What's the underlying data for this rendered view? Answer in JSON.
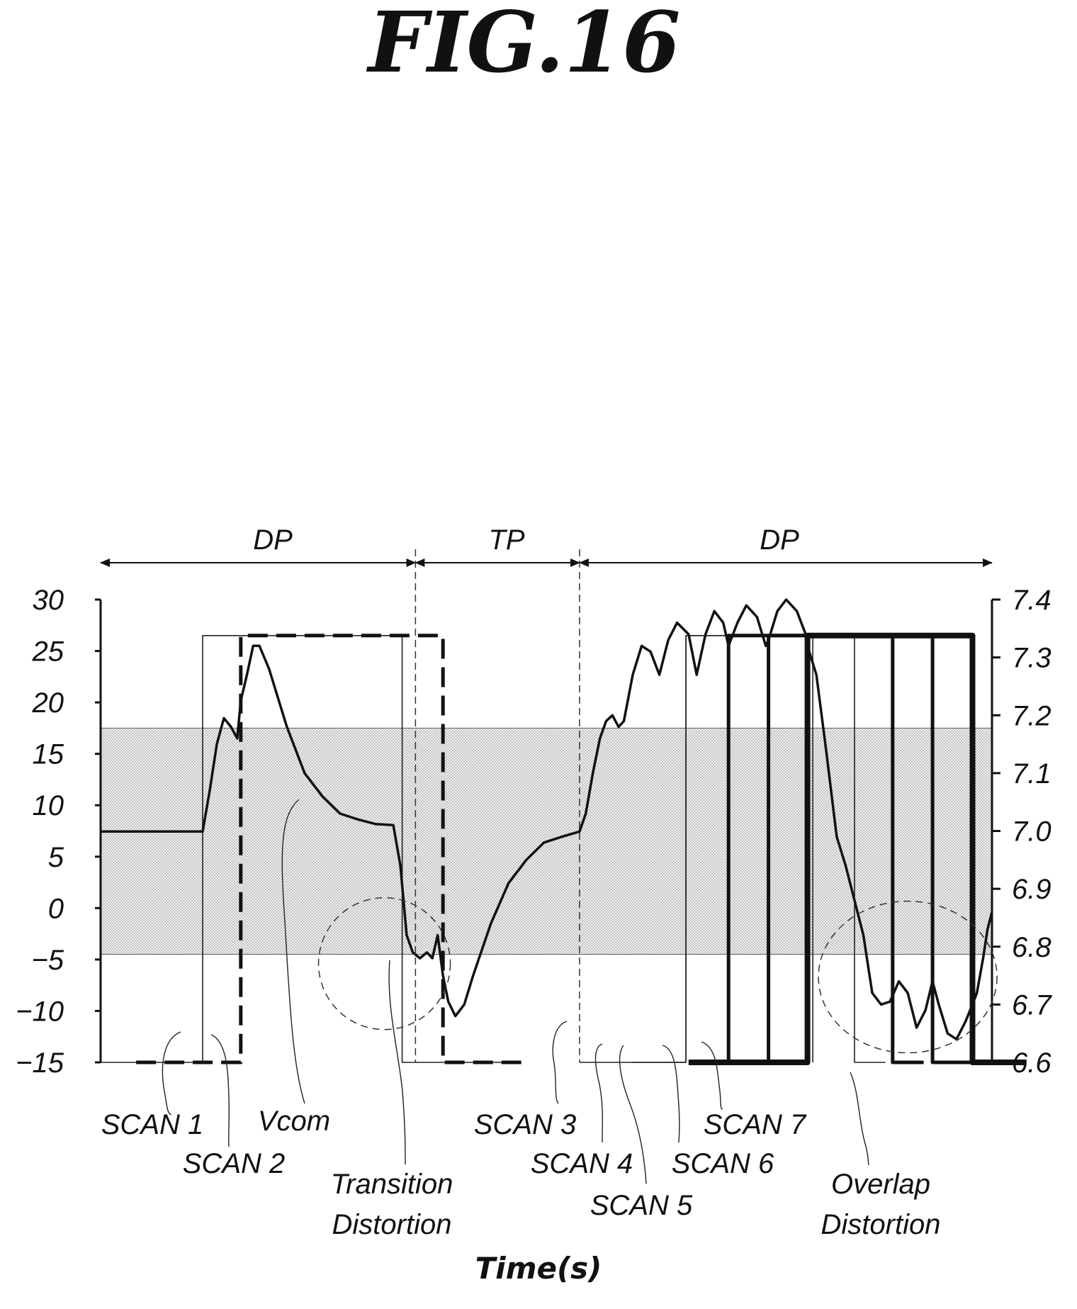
{
  "figure_title": "FIG.16",
  "chart_data": {
    "type": "line",
    "title": "FIG.16",
    "xlabel": "Time(s)",
    "left_axis": {
      "ticks": [
        "30",
        "25",
        "20",
        "15",
        "10",
        "5",
        "0",
        "−5",
        "−10",
        "−15"
      ],
      "ylim": [
        -15,
        30
      ]
    },
    "right_axis": {
      "ticks": [
        "7.4",
        "7.3",
        "7.2",
        "7.1",
        "7.0",
        "6.9",
        "6.8",
        "6.7",
        "6.6"
      ],
      "ylim": [
        6.6,
        7.4
      ]
    },
    "shaded_band_left_units": [
      -4.5,
      17.5
    ],
    "periods": [
      {
        "label": "DP",
        "from": 0,
        "to": 355
      },
      {
        "label": "TP",
        "from": 355,
        "to": 540
      },
      {
        "label": "DP",
        "from": 540,
        "to": 1005
      }
    ],
    "series": [
      {
        "name": "SCAN 1",
        "style": "thin",
        "high": 26.5,
        "low": -15,
        "x": [
          0,
          115,
          115,
          340,
          340,
          470
        ],
        "y": [
          -15,
          -15,
          26.5,
          26.5,
          -15,
          -15
        ]
      },
      {
        "name": "SCAN 2",
        "style": "dashed",
        "high": 26.5,
        "low": -15,
        "x": [
          40,
          158,
          158,
          386,
          386,
          480
        ],
        "y": [
          -15,
          -15,
          26.5,
          26.5,
          -15,
          -15
        ]
      },
      {
        "name": "SCAN 3",
        "style": "thin",
        "high": 26.5,
        "low": -15,
        "x": [
          540,
          660,
          660,
          803,
          803
        ],
        "y": [
          -15,
          -15,
          26.5,
          26.5,
          -15
        ]
      },
      {
        "name": "SCAN 4",
        "style": "thin",
        "high": 26.5,
        "low": -15,
        "x": [
          600,
          660,
          660,
          850,
          850,
          885
        ],
        "y": [
          -15,
          -15,
          26.5,
          26.5,
          -15,
          -15
        ]
      },
      {
        "name": "SCAN 5",
        "style": "medium",
        "high": 26.5,
        "low": -15,
        "x": [
          663,
          708,
          708,
          893,
          893,
          928
        ],
        "y": [
          -15,
          -15,
          26.5,
          26.5,
          -15,
          -15
        ]
      },
      {
        "name": "SCAN 6",
        "style": "medium",
        "high": 26.5,
        "low": -15,
        "x": [
          663,
          753,
          753,
          938,
          938,
          985
        ],
        "y": [
          -15,
          -15,
          26.5,
          26.5,
          -15,
          -15
        ]
      },
      {
        "name": "SCAN 7",
        "style": "thick",
        "high": 26.5,
        "low": -15,
        "x": [
          663,
          797,
          797,
          983,
          983,
          1044
        ],
        "y": [
          -15,
          -15,
          26.5,
          26.5,
          -15,
          -15
        ]
      },
      {
        "name": "Vcom",
        "style": "curve",
        "axis": "right",
        "x": [
          0,
          115,
          123,
          131,
          139,
          147,
          154,
          158,
          165,
          172,
          179,
          190,
          210,
          230,
          250,
          270,
          290,
          310,
          330,
          338,
          345,
          352,
          360,
          368,
          374,
          380,
          386,
          392,
          400,
          410,
          420,
          440,
          460,
          480,
          500,
          520,
          540,
          547,
          555,
          563,
          570,
          577,
          584,
          590,
          600,
          610,
          620,
          630,
          640,
          650,
          663,
          672,
          682,
          692,
          702,
          708,
          718,
          728,
          740,
          750,
          753,
          763,
          773,
          785,
          795,
          797,
          807,
          818,
          830,
          840,
          850,
          860,
          870,
          880,
          890,
          900,
          910,
          920,
          930,
          938,
          945,
          955,
          965,
          975,
          983,
          988,
          995,
          1000,
          1005
        ],
        "y": [
          6.999,
          6.999,
          7.07,
          7.15,
          7.195,
          7.18,
          7.16,
          7.225,
          7.27,
          7.32,
          7.32,
          7.28,
          7.18,
          7.1,
          7.06,
          7.03,
          7.02,
          7.012,
          7.01,
          6.94,
          6.82,
          6.79,
          6.78,
          6.79,
          6.78,
          6.82,
          6.75,
          6.705,
          6.68,
          6.7,
          6.75,
          6.84,
          6.91,
          6.95,
          6.98,
          6.99,
          6.999,
          7.03,
          7.1,
          7.16,
          7.19,
          7.2,
          7.18,
          7.19,
          7.27,
          7.32,
          7.31,
          7.27,
          7.33,
          7.36,
          7.34,
          7.27,
          7.34,
          7.38,
          7.36,
          7.32,
          7.36,
          7.39,
          7.37,
          7.32,
          7.33,
          7.38,
          7.4,
          7.38,
          7.34,
          7.32,
          7.27,
          7.14,
          6.99,
          6.94,
          6.88,
          6.82,
          6.72,
          6.7,
          6.705,
          6.74,
          6.72,
          6.66,
          6.69,
          6.74,
          6.7,
          6.65,
          6.64,
          6.67,
          6.7,
          6.72,
          6.78,
          6.83,
          6.86
        ]
      }
    ]
  },
  "labels": {
    "dp_left": "DP",
    "tp": "TP",
    "dp_right": "DP",
    "scan1": "SCAN 1",
    "scan2": "SCAN 2",
    "vcom": "Vcom",
    "transition1": "Transition",
    "transition2": "Distortion",
    "scan3": "SCAN 3",
    "scan4": "SCAN 4",
    "scan5": "SCAN 5",
    "scan6": "SCAN 6",
    "scan7": "SCAN 7",
    "overlap1": "Overlap",
    "overlap2": "Distortion"
  }
}
